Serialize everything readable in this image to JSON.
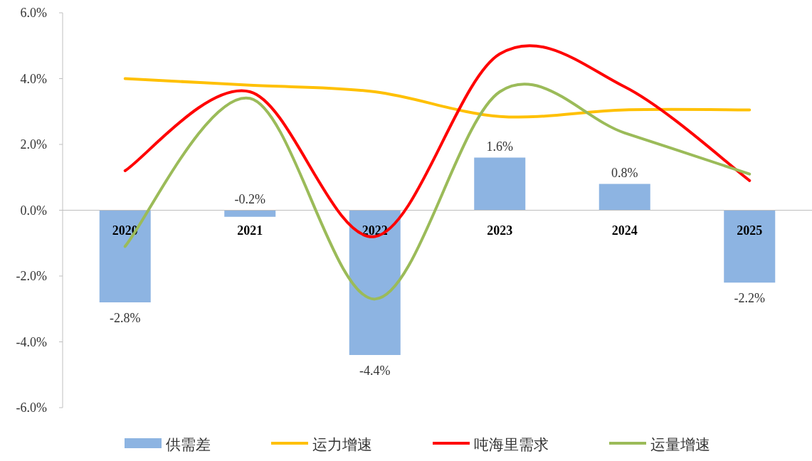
{
  "chart_data": {
    "type": "bar",
    "categories": [
      "2020",
      "2021",
      "2022",
      "2023",
      "2024",
      "2025"
    ],
    "series": [
      {
        "name": "供需差",
        "color": "#8db4e2",
        "values": [
          -2.8,
          -0.2,
          -4.4,
          1.6,
          0.8,
          -2.2
        ],
        "value_labels": [
          "-2.8%",
          "-0.2%",
          "-4.4%",
          "1.6%",
          "0.8%",
          "-2.2%"
        ]
      },
      {
        "name": "运力增速",
        "type": "line",
        "color": "#ffc000",
        "values": [
          4.0,
          3.8,
          3.6,
          2.85,
          3.05,
          3.05
        ]
      },
      {
        "name": "吨海里需求",
        "type": "line",
        "color": "#ff0000",
        "values": [
          1.2,
          3.6,
          -0.8,
          4.75,
          3.75,
          0.9
        ]
      },
      {
        "name": "运量增速",
        "type": "line",
        "color": "#9bbb59",
        "values": [
          -1.1,
          3.4,
          -2.7,
          3.6,
          2.35,
          1.1
        ]
      }
    ],
    "ylim": [
      -6,
      6
    ],
    "yticks": [
      {
        "value": -6,
        "label": "-6.0%"
      },
      {
        "value": -4,
        "label": "-4.0%"
      },
      {
        "value": -2,
        "label": "-2.0%"
      },
      {
        "value": 0,
        "label": "0.0%"
      },
      {
        "value": 2,
        "label": "2.0%"
      },
      {
        "value": 4,
        "label": "4.0%"
      },
      {
        "value": 6,
        "label": "6.0%"
      }
    ],
    "legend": "bottom"
  }
}
